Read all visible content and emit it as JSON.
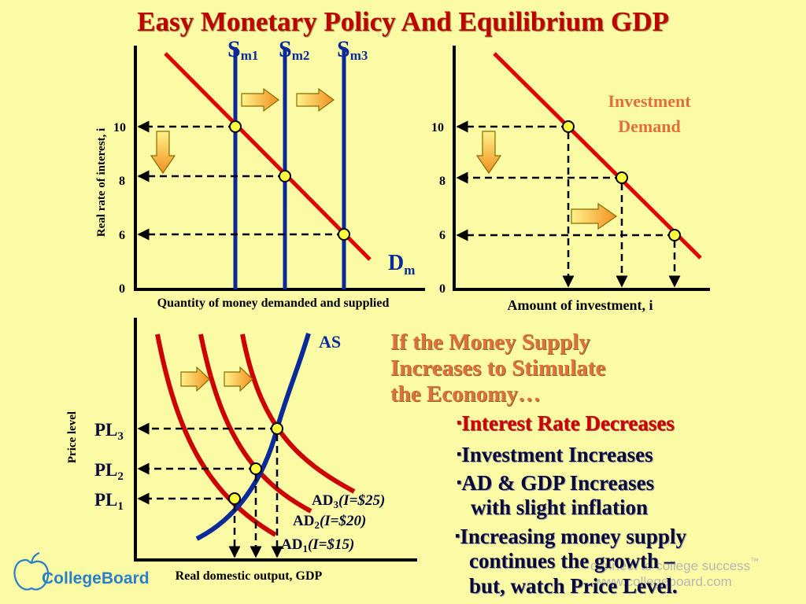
{
  "title": "Easy Monetary Policy And Equilibrium GDP",
  "money_market": {
    "ylabel": "Real rate of interest, i",
    "xlabel": "Quantity of money demanded and supplied",
    "y_ticks": [
      "10",
      "8",
      "6",
      "0"
    ],
    "supply_curves": [
      {
        "main": "S",
        "sub": "m1"
      },
      {
        "main": "S",
        "sub": "m2"
      },
      {
        "main": "S",
        "sub": "m3"
      }
    ],
    "demand_label": {
      "main": "D",
      "sub": "m"
    }
  },
  "investment_market": {
    "xlabel": "Amount of investment, i",
    "y_ticks": [
      "10",
      "8",
      "6",
      "0"
    ],
    "curve_label_line1": "Investment",
    "curve_label_line2": "Demand"
  },
  "adas": {
    "ylabel": "Price level",
    "xlabel": "Real domestic output, GDP",
    "as_label": "AS",
    "price_levels": [
      {
        "main": "PL",
        "sub": "3"
      },
      {
        "main": "PL",
        "sub": "2"
      },
      {
        "main": "PL",
        "sub": "1"
      }
    ],
    "ad_labels": [
      {
        "main": "AD",
        "sub": "3",
        "note": "(I=$25)"
      },
      {
        "main": "AD",
        "sub": "2",
        "note": "(I=$20)"
      },
      {
        "main": "AD",
        "sub": "1",
        "note": "(I=$15)"
      }
    ]
  },
  "explanation": {
    "headline": [
      "If the Money Supply",
      "Increases to Stimulate",
      "the Economy…"
    ],
    "bullet_marker": "▪",
    "bullets": [
      "Interest Rate Decreases",
      "Investment Increases",
      "AD & GDP Increases",
      "with slight inflation",
      "Increasing money supply",
      "continues the growth –",
      "but, watch Price Level."
    ]
  },
  "watermark": {
    "tagline": "connect to college success",
    "tm": "™",
    "url": "www.collegeboard.com"
  },
  "logo": {
    "text": "CollegeBoard",
    "icon": "apple-icon"
  },
  "colors": {
    "background": "#FBFBA6",
    "title": "#C00000",
    "demand_curve": "#E00000",
    "supply_curve": "#0A2A9A",
    "headline": "#E0703A",
    "logo": "#2A7FC8"
  }
}
